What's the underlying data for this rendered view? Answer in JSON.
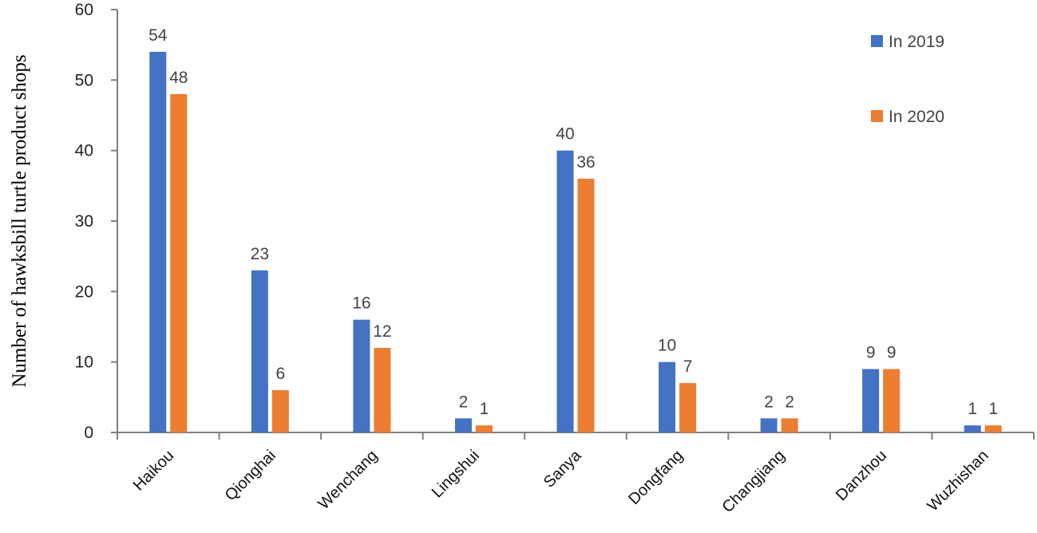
{
  "chart_data": {
    "type": "bar",
    "title": "",
    "xlabel": "",
    "ylabel": "Number of hawksbill turtle product shops",
    "ylim": [
      0,
      60
    ],
    "yticks": [
      0,
      10,
      20,
      30,
      40,
      50,
      60
    ],
    "grid": false,
    "legend_position": "top-right",
    "categories": [
      "Haikou",
      "Qionghai",
      "Wenchang",
      "Lingshui",
      "Sanya",
      "Dongfang",
      "Changjiang",
      "Danzhou",
      "Wuzhishan"
    ],
    "series": [
      {
        "name": "In 2019",
        "color": "#4472C4",
        "values": [
          54,
          23,
          16,
          2,
          40,
          10,
          2,
          9,
          1
        ]
      },
      {
        "name": "In 2020",
        "color": "#ED7D31",
        "values": [
          48,
          6,
          12,
          1,
          36,
          7,
          2,
          9,
          1
        ]
      }
    ],
    "data_labels": true
  },
  "colors": {
    "axis": "#7f7f7f"
  }
}
